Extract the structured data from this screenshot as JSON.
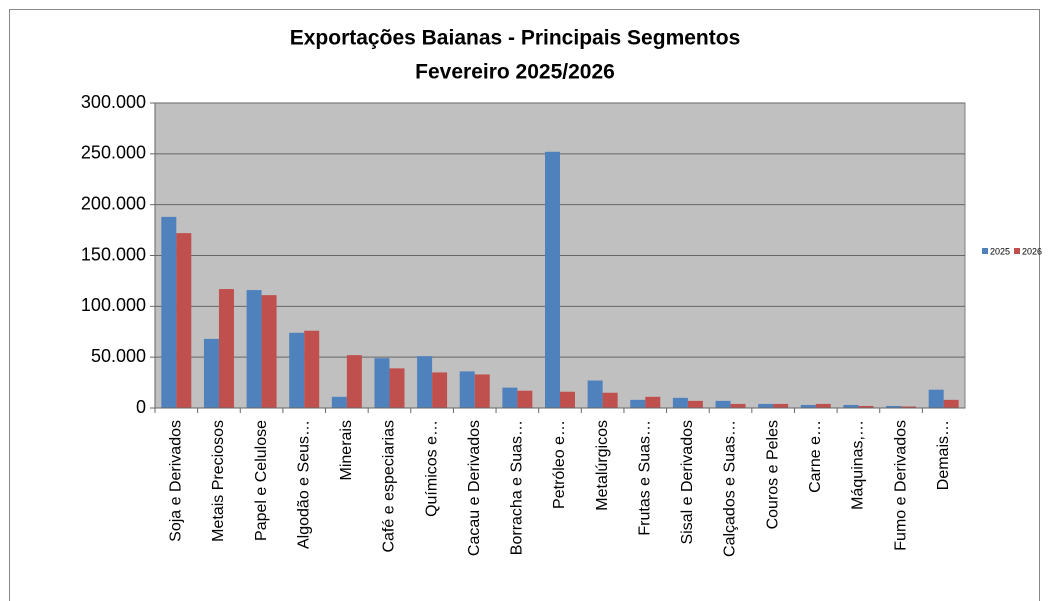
{
  "chart_data": {
    "type": "bar",
    "title": "Exportações Baianas - Principais Segmentos",
    "subtitle": "Fevereiro 2025/2026",
    "categories": [
      "Soja e Derivados",
      "Metais Preciosos",
      "Papel e Celulose",
      "Algodão e Seus…",
      "Minerais",
      "Café e especiarias",
      "Químicos e…",
      "Cacau e Derivados",
      "Borracha e Suas…",
      "Petróleo e…",
      "Metalúrgicos",
      "Frutas e Suas…",
      "Sisal e Derivados",
      "Calçados e Suas…",
      "Couros e Peles",
      "Carne e…",
      "Máquinas,…",
      "Fumo e Derivados",
      "Demais…"
    ],
    "series": [
      {
        "name": "2025",
        "color": "#4f81bd",
        "values": [
          188000,
          68000,
          116000,
          74000,
          11000,
          49000,
          51000,
          36000,
          20000,
          252000,
          27000,
          8000,
          10000,
          7000,
          4000,
          3000,
          3000,
          2000,
          18000
        ]
      },
      {
        "name": "2026",
        "color": "#c0504d",
        "values": [
          172000,
          117000,
          111000,
          76000,
          52000,
          39000,
          35000,
          33000,
          17000,
          16000,
          15000,
          11000,
          7000,
          4000,
          4000,
          4000,
          2000,
          1500,
          8000
        ]
      }
    ],
    "ylim": [
      0,
      300000
    ],
    "yticks": [
      0,
      {
        "value": 50000,
        "label": "50.000"
      },
      {
        "value": 100000,
        "label": "100.000"
      },
      {
        "value": 150000,
        "label": "150.000"
      },
      {
        "value": 200000,
        "label": "200.000"
      },
      {
        "value": 250000,
        "label": "250.000"
      },
      {
        "value": 300000,
        "label": "300.000"
      }
    ],
    "grid": true,
    "legend": "right"
  }
}
